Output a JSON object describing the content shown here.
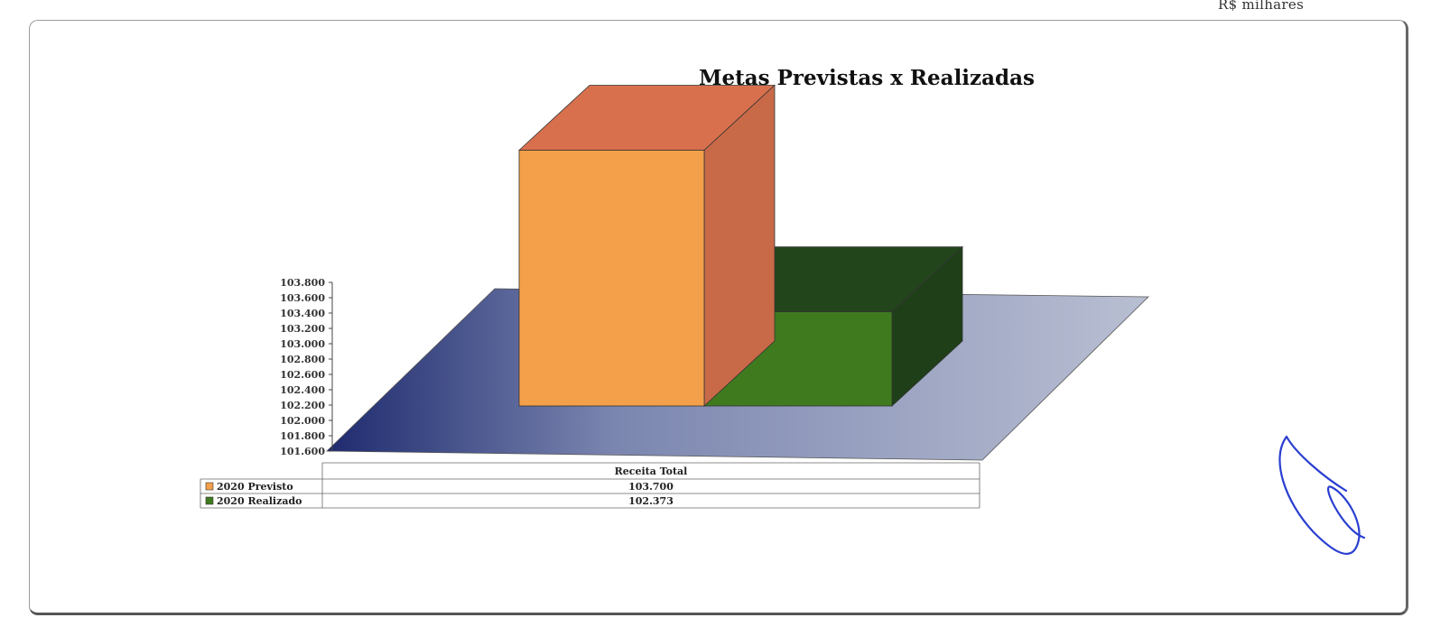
{
  "unit": "R$ milhares",
  "chart_data": {
    "type": "bar",
    "title": "Metas Previstas x Realizadas",
    "categories": [
      "Receita Total"
    ],
    "series": [
      {
        "name": "2020 Previsto",
        "values": [
          103700
        ],
        "value_labels": [
          "103.700"
        ]
      },
      {
        "name": "2020 Realizado",
        "values": [
          102373
        ],
        "value_labels": [
          "102.373"
        ]
      }
    ],
    "ylim": [
      101600,
      103800
    ],
    "yticks": [
      "101.600",
      "101.800",
      "102.000",
      "102.200",
      "102.400",
      "102.600",
      "102.800",
      "103.000",
      "103.200",
      "103.400",
      "103.600",
      "103.800"
    ],
    "legend": "data-table",
    "colors": {
      "previsto_front": "#f4a04a",
      "previsto_side": "#c86a48",
      "previsto_top": "#d8704e",
      "realizado_front": "#3f7a1f",
      "realizado_side": "#1f3f18",
      "realizado_top": "#23451c",
      "floor": "#8f9ab8"
    }
  }
}
